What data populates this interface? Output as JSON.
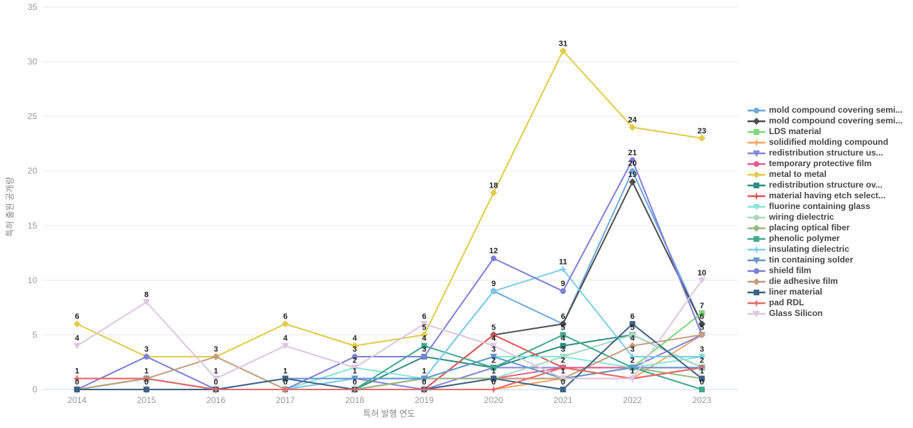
{
  "chart_data": {
    "type": "line",
    "title": "",
    "xlabel": "특허 발행 연도",
    "ylabel": "특허 출원 공개량",
    "x": [
      "2014",
      "2015",
      "2016",
      "2017",
      "2018",
      "2019",
      "2020",
      "2021",
      "2022",
      "2023"
    ],
    "ylim": [
      0,
      35
    ],
    "yticks": [
      0,
      5,
      10,
      15,
      20,
      25,
      30,
      35
    ],
    "grid": true,
    "legend_position": "right",
    "series": [
      {
        "name": "mold compound covering semi...",
        "color": "#6CA9E0",
        "marker": "circle",
        "values": [
          0,
          0,
          0,
          0,
          0,
          1,
          9,
          6,
          20,
          6
        ]
      },
      {
        "name": "mold compound covering semi...",
        "color": "#4D4D4D",
        "marker": "diamond",
        "values": [
          0,
          0,
          0,
          0,
          0,
          0,
          5,
          6,
          19,
          6
        ]
      },
      {
        "name": "LDS material",
        "color": "#7BD97B",
        "marker": "square",
        "values": [
          0,
          0,
          0,
          0,
          0,
          0,
          1,
          1,
          2,
          7
        ]
      },
      {
        "name": "solidified molding compound",
        "color": "#F2A662",
        "marker": "star",
        "values": [
          0,
          0,
          0,
          0,
          0,
          0,
          0,
          1,
          1,
          5
        ]
      },
      {
        "name": "redistribution structure us...",
        "color": "#8286D9",
        "marker": "triangle-down",
        "values": [
          0,
          0,
          0,
          0,
          1,
          0,
          2,
          2,
          2,
          5
        ]
      },
      {
        "name": "temporary protective film",
        "color": "#E55C8A",
        "marker": "circle",
        "values": [
          0,
          0,
          0,
          0,
          0,
          1,
          1,
          2,
          2,
          2
        ]
      },
      {
        "name": "metal to metal",
        "color": "#E2CB49",
        "marker": "diamond",
        "values": [
          6,
          3,
          3,
          6,
          4,
          5,
          18,
          31,
          24,
          23
        ]
      },
      {
        "name": "redistribution structure ov...",
        "color": "#2F8C82",
        "marker": "square",
        "values": [
          0,
          1,
          0,
          0,
          0,
          3,
          2,
          4,
          5,
          2
        ]
      },
      {
        "name": "material having etch select...",
        "color": "#E25555",
        "marker": "star",
        "values": [
          1,
          1,
          0,
          0,
          0,
          0,
          5,
          2,
          1,
          2
        ]
      },
      {
        "name": "fluorine containing glass",
        "color": "#85E6DA",
        "marker": "triangle-down",
        "values": [
          0,
          0,
          0,
          0,
          2,
          1,
          3,
          3,
          2,
          3
        ]
      },
      {
        "name": "wiring dielectric",
        "color": "#A8D8C0",
        "marker": "circle",
        "values": [
          0,
          0,
          0,
          0,
          0,
          0,
          1,
          3,
          5,
          2
        ]
      },
      {
        "name": "placing optical fiber",
        "color": "#94B881",
        "marker": "diamond",
        "values": [
          0,
          0,
          0,
          0,
          0,
          1,
          1,
          1,
          2,
          1
        ]
      },
      {
        "name": "phenolic polymer",
        "color": "#41A98E",
        "marker": "square",
        "values": [
          0,
          1,
          0,
          0,
          0,
          4,
          2,
          5,
          2,
          0
        ]
      },
      {
        "name": "insulating dielectric",
        "color": "#7ECCE8",
        "marker": "star",
        "values": [
          0,
          0,
          0,
          0,
          1,
          1,
          9,
          11,
          3,
          3
        ]
      },
      {
        "name": "tin containing solder",
        "color": "#6296CE",
        "marker": "triangle-down",
        "values": [
          0,
          0,
          0,
          1,
          1,
          1,
          3,
          1,
          2,
          2
        ]
      },
      {
        "name": "shield film",
        "color": "#7D7FD9",
        "marker": "circle",
        "values": [
          0,
          3,
          0,
          0,
          3,
          3,
          12,
          9,
          21,
          5
        ]
      },
      {
        "name": "die adhesive film",
        "color": "#C69C7B",
        "marker": "diamond",
        "values": [
          0,
          1,
          3,
          0,
          0,
          0,
          1,
          1,
          4,
          5
        ]
      },
      {
        "name": "liner material",
        "color": "#3E6284",
        "marker": "square",
        "values": [
          0,
          0,
          0,
          1,
          0,
          0,
          1,
          0,
          6,
          1
        ]
      },
      {
        "name": "pad RDL",
        "color": "#E96A6A",
        "marker": "star",
        "values": [
          1,
          1,
          0,
          0,
          0,
          0,
          0,
          2,
          1,
          2
        ]
      },
      {
        "name": "Glass Silicon",
        "color": "#DCC6E0",
        "marker": "triangle-down",
        "values": [
          4,
          8,
          1,
          4,
          2,
          6,
          4,
          1,
          1,
          10
        ]
      }
    ],
    "colors": {
      "grid": "#e8e8e8",
      "axis_line": "#ccd6eb",
      "tick_text": "#999999",
      "axis_title_text": "#888888",
      "point_label_text": "#222222",
      "legend_text": "#474747",
      "background": "#ffffff"
    }
  }
}
